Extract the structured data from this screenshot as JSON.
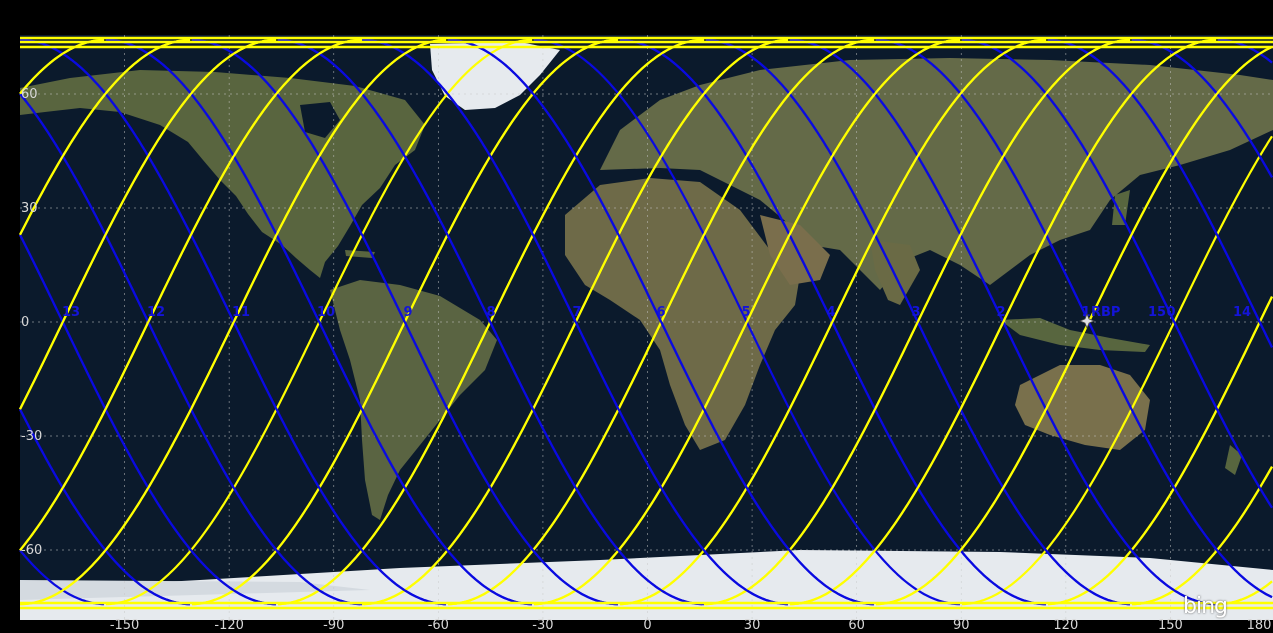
{
  "map": {
    "type": "ground-track",
    "lon_range": [
      -180,
      180
    ],
    "lat_range": [
      -80,
      80
    ],
    "colors": {
      "background": "#000000",
      "ocean": "#0b1a2c",
      "land": "#5c6a45",
      "ice": "#e6eaee",
      "track_north": "#ffff00",
      "track_south": "#0a0ae0",
      "track_point": "#ff2020",
      "grid": "#c8c8c8"
    },
    "lat_labels": [
      {
        "lat": 60,
        "text": "60"
      },
      {
        "lat": 30,
        "text": "30"
      },
      {
        "lat": 0,
        "text": "0"
      },
      {
        "lat": -30,
        "text": "-30"
      },
      {
        "lat": -60,
        "text": "-60"
      }
    ],
    "lon_labels": [
      {
        "lon": -150,
        "text": "-150"
      },
      {
        "lon": -120,
        "text": "-120"
      },
      {
        "lon": -90,
        "text": "-90"
      },
      {
        "lon": -60,
        "text": "-60"
      },
      {
        "lon": -30,
        "text": "-30"
      },
      {
        "lon": 0,
        "text": "0"
      },
      {
        "lon": 30,
        "text": "30"
      },
      {
        "lon": 60,
        "text": "60"
      },
      {
        "lon": 90,
        "text": "90"
      },
      {
        "lon": 120,
        "text": "120"
      },
      {
        "lon": 150,
        "text": "150"
      },
      {
        "lon": 180,
        "text": "180"
      }
    ],
    "orbit_labels": [
      {
        "lon": -163,
        "text": "13"
      },
      {
        "lon": -132,
        "text": "12"
      },
      {
        "lon": -102,
        "text": "11"
      },
      {
        "lon": -73,
        "text": "10"
      },
      {
        "lon": -43,
        "text": "9"
      },
      {
        "lon": -13,
        "text": "8"
      },
      {
        "lon": 16,
        "text": "7"
      },
      {
        "lon": 46,
        "text": "6"
      },
      {
        "lon": 76,
        "text": "5"
      },
      {
        "lon": 105,
        "text": "4"
      },
      {
        "lon": 134,
        "text": "3"
      },
      {
        "lon": 164,
        "text": "2"
      },
      {
        "lon": 194,
        "text": "1"
      },
      {
        "lon": 223,
        "text": "0"
      },
      {
        "lon": 281,
        "text": "15"
      },
      {
        "lon": 311,
        "text": "14"
      }
    ],
    "ground_station": {
      "label": "RBP",
      "lon": 130,
      "lat": 0
    },
    "logo_text": "bing"
  }
}
